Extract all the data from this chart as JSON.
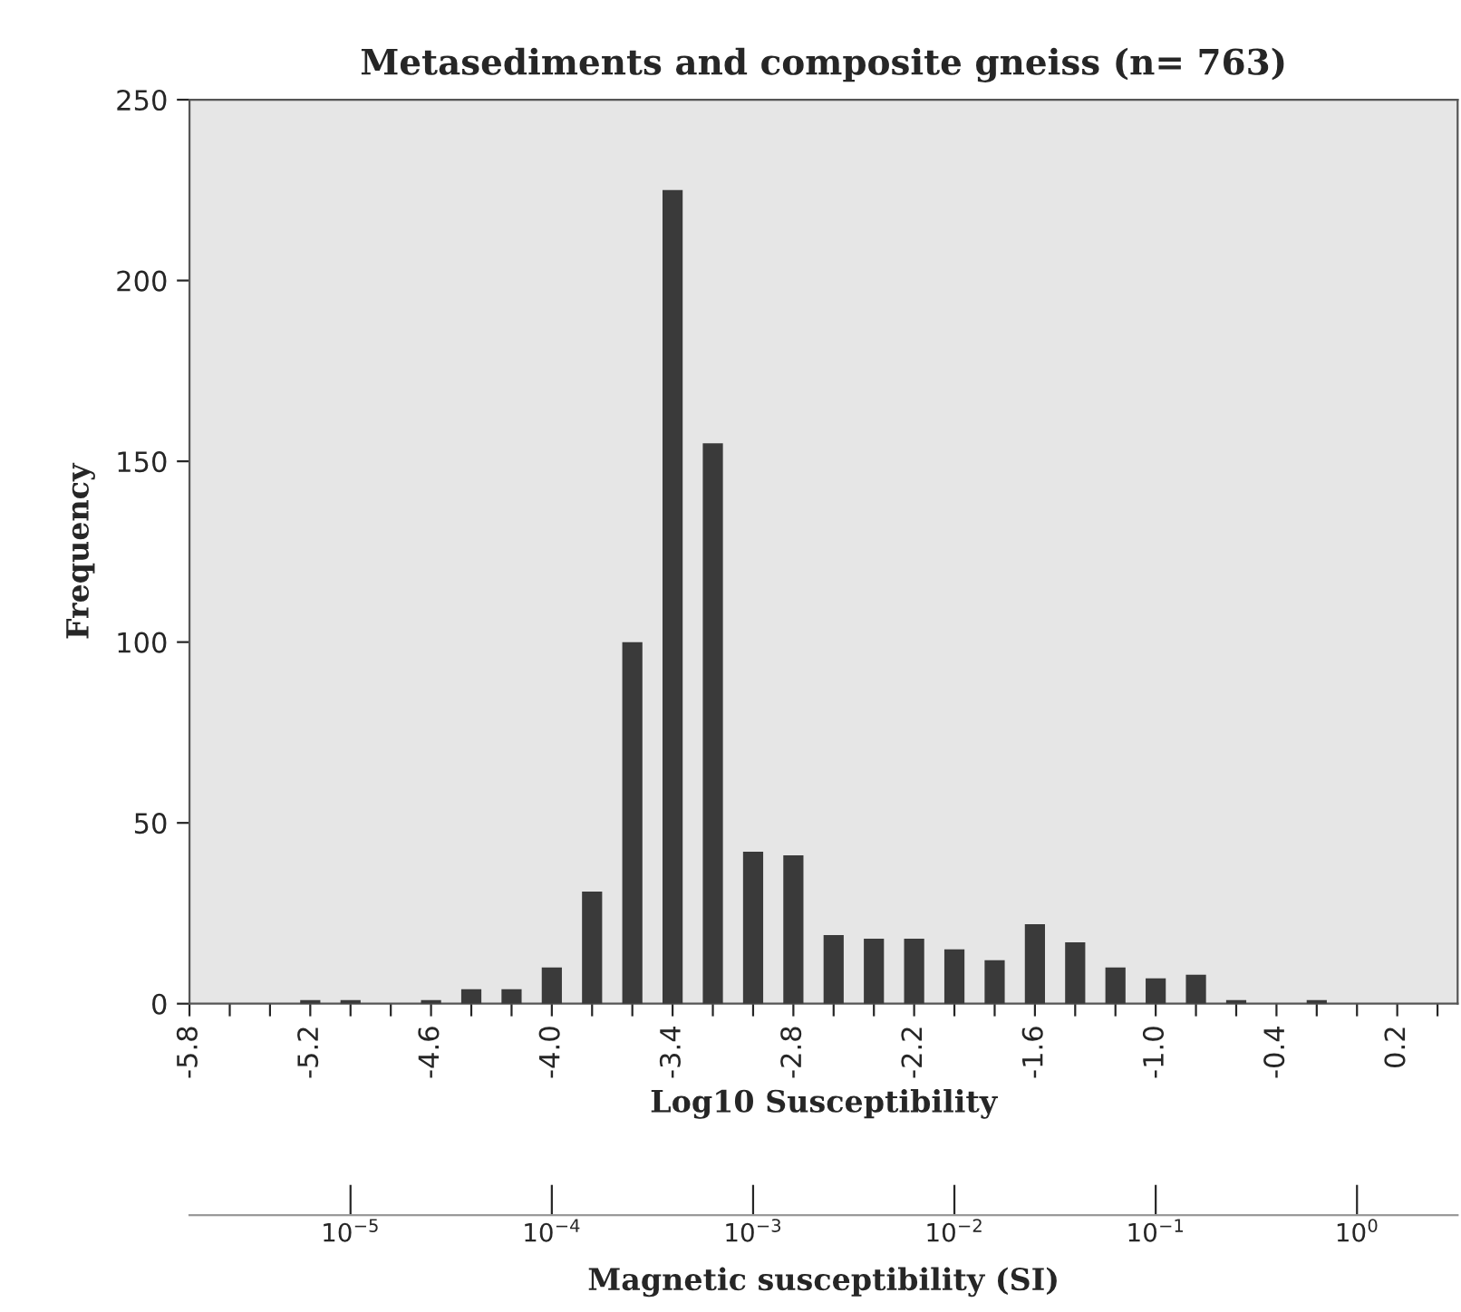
{
  "chart_data": {
    "type": "bar",
    "title": "Metasediments and composite gneiss (n= 763)",
    "xlabel": "Log10 Susceptibility",
    "ylabel": "Frequency",
    "x2label": "Magnetic susceptibility (SI)",
    "x": [
      -5.2,
      -5.0,
      -4.8,
      -4.6,
      -4.4,
      -4.2,
      -4.0,
      -3.8,
      -3.6,
      -3.4,
      -3.2,
      -3.0,
      -2.8,
      -2.6,
      -2.4,
      -2.2,
      -2.0,
      -1.8,
      -1.6,
      -1.4,
      -1.2,
      -1.0,
      -0.8,
      -0.6,
      -0.4,
      -0.2
    ],
    "values": [
      1,
      1,
      0,
      1,
      4,
      4,
      10,
      31,
      100,
      225,
      155,
      42,
      41,
      19,
      18,
      18,
      15,
      12,
      22,
      17,
      10,
      7,
      8,
      1,
      0,
      1
    ],
    "color": "#3a3a3a",
    "xlim": [
      -5.8,
      0.5
    ],
    "xticks": [
      -5.8,
      {
        "value": -5.6,
        "label": null
      },
      {
        "value": -5.4,
        "label": null
      },
      -5.2,
      {
        "value": -5.0,
        "label": null
      },
      {
        "value": -4.8,
        "label": null
      },
      -4.6,
      {
        "value": -4.4,
        "label": null
      },
      {
        "value": -4.2,
        "label": null
      },
      {
        "value": -4.0,
        "label": "-4.0"
      },
      {
        "value": -3.8,
        "label": null
      },
      {
        "value": -3.6,
        "label": null
      },
      -3.4,
      {
        "value": -3.2,
        "label": null
      },
      {
        "value": -3.0,
        "label": null
      },
      -2.8,
      {
        "value": -2.6,
        "label": null
      },
      {
        "value": -2.4,
        "label": null
      },
      -2.2,
      {
        "value": -2.0,
        "label": null
      },
      {
        "value": -1.8,
        "label": null
      },
      -1.6,
      {
        "value": -1.4,
        "label": null
      },
      {
        "value": -1.2,
        "label": null
      },
      {
        "value": -1.0,
        "label": "-1.0"
      },
      {
        "value": -0.8,
        "label": null
      },
      {
        "value": -0.6,
        "label": null
      },
      -0.4,
      {
        "value": -0.2,
        "label": null
      },
      {
        "value": 0.0,
        "label": null
      },
      0.2,
      {
        "value": 0.4,
        "label": null
      }
    ],
    "ylim": [
      0,
      250
    ],
    "yticks": [
      0,
      50,
      100,
      150,
      200,
      250
    ],
    "x2lim": [
      1.5849e-06,
      3.1623
    ],
    "x2ticks": [
      {
        "value": 1e-05,
        "label": "10$^{−5}$"
      },
      {
        "value": 0.0001,
        "label": "10$^{−4}$"
      },
      {
        "value": 0.001,
        "label": "10$^{−3}$"
      },
      {
        "value": 0.01,
        "label": "10$^{−2}$"
      },
      {
        "value": 0.1,
        "label": "10$^{−1}$"
      },
      {
        "value": 1,
        "label": "10$^{0}$"
      }
    ],
    "log": "x2",
    "grid": false,
    "legend": false
  }
}
